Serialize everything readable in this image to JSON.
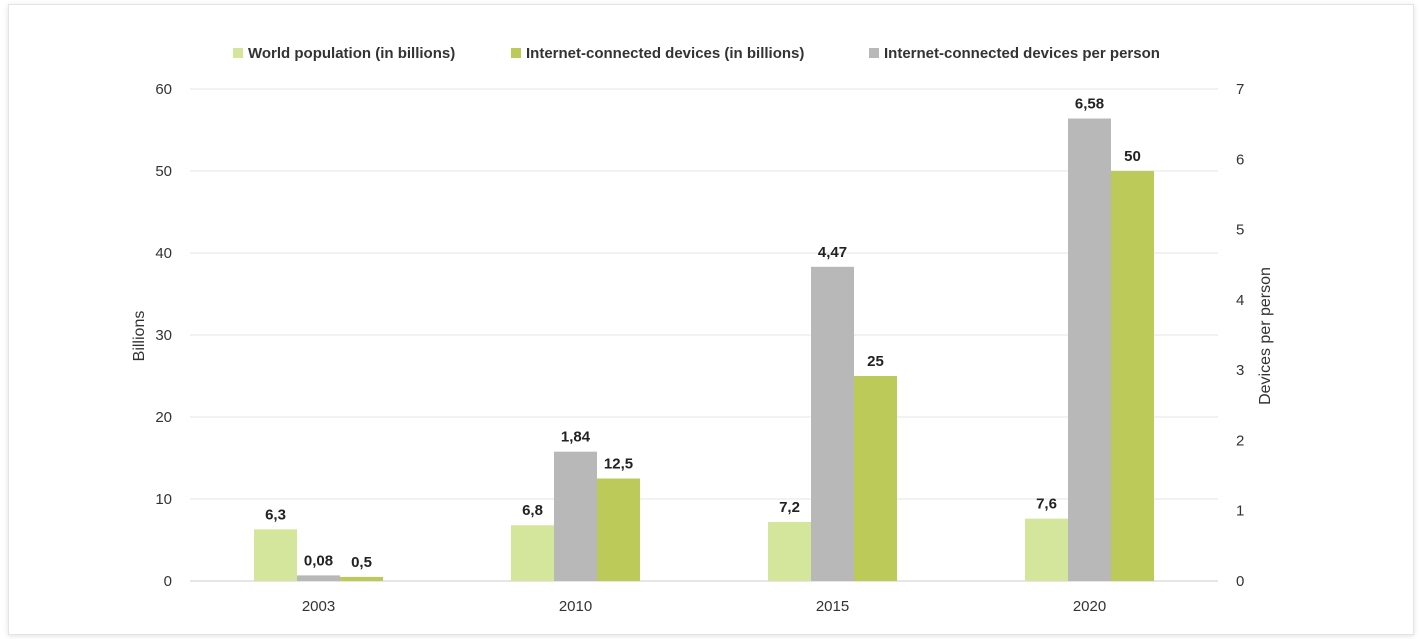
{
  "chart_data": {
    "type": "bar",
    "categories": [
      "2003",
      "2010",
      "2015",
      "2020"
    ],
    "series": [
      {
        "name": "World population (in billions)",
        "axis": "left",
        "color": "#d4e59c",
        "values": [
          6.3,
          6.8,
          7.2,
          7.6
        ],
        "labels": [
          "6,3",
          "6,8",
          "7,2",
          "7,6"
        ]
      },
      {
        "name": "Internet-connected devices per person",
        "axis": "right",
        "color": "#b8b8b8",
        "values": [
          0.08,
          1.84,
          4.47,
          6.58
        ],
        "labels": [
          "0,08",
          "1,84",
          "4,47",
          "6,58"
        ]
      },
      {
        "name": "Internet-connected devices (in billions)",
        "axis": "left",
        "color": "#bcca5a",
        "values": [
          0.5,
          12.5,
          25,
          50
        ],
        "labels": [
          "0,5",
          "12,5",
          "25",
          "50"
        ]
      }
    ],
    "legend": [
      {
        "name": "World population (in billions)",
        "color": "#d4e59c"
      },
      {
        "name": "Internet-connected devices (in billions)",
        "color": "#bcca5a"
      },
      {
        "name": "Internet-connected devices per person",
        "color": "#b8b8b8"
      }
    ],
    "legend_position": "top",
    "ylabel": "Billions",
    "y2label": "Devices per person",
    "ylim": [
      0,
      60
    ],
    "y2lim": [
      0,
      7
    ],
    "yticks": [
      "0",
      "10",
      "20",
      "30",
      "40",
      "50",
      "60"
    ],
    "y2ticks": [
      "0",
      "1",
      "2",
      "3",
      "4",
      "5",
      "6",
      "7"
    ],
    "grid": true
  }
}
